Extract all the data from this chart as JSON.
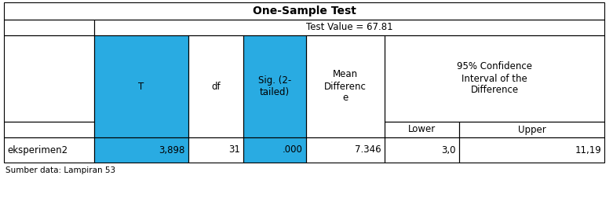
{
  "title": "One-Sample Test",
  "test_value_label": "Test Value = 67.81",
  "highlight_color": "#29ABE2",
  "bg_color": "#FFFFFF",
  "border_color": "#000000",
  "data_row": [
    "eksperimen2",
    "3,898",
    "31",
    ".000",
    "7.346",
    "3,0",
    "11,19"
  ],
  "footer": "Sumber data: Lampiran 53",
  "title_fontsize": 10,
  "body_fontsize": 8.5,
  "footer_fontsize": 7.5
}
